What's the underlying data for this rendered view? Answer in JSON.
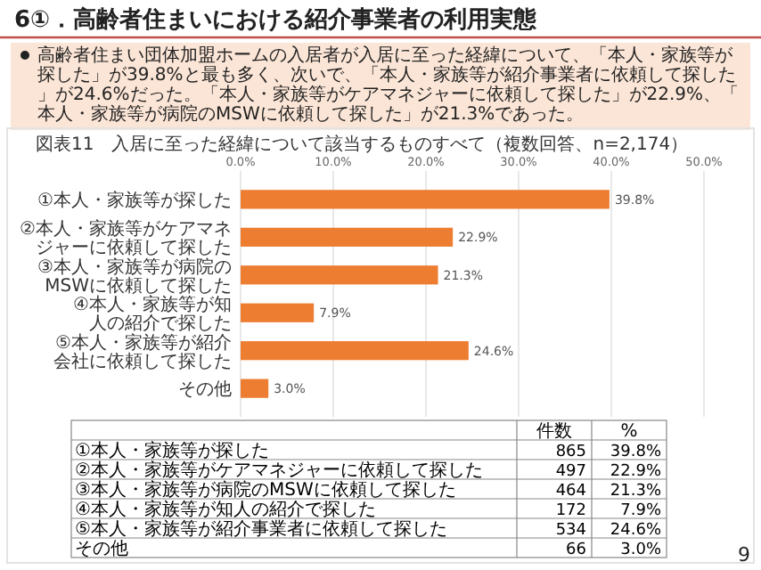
{
  "chart_data": [
    {
      "type": "bar",
      "orientation": "horizontal",
      "title": "6①．高齢者住まいにおける紹介事業者の利用実態",
      "subtitle": "図表11　入居に至った経緯について該当するものすべて（複数回答、n=2,174）",
      "annotations": [
        "高齢者住まい団体加盟ホームの入居者が入居に至った経緯について、「本人・家族等が探した」が39.8%と最も多く、次いで、「本人・家族等が紹介事業者に依頼して探した」が24.6%だった。「本人・家族等がケアマネジャーに依頼して探した」が22.9%、「本人・家族等が病院のMSWに依頼して探した」が21.3%であった。",
        "9"
      ],
      "categories": [
        "①本人・家族等が探した",
        "②本人・家族等がケアマネジャーに依頼して探した",
        "③本人・家族等が病院のMSWに依頼して探した",
        "④本人・家族等が知人の紹介で探した",
        "⑤本人・家族等が紹介会社に依頼して探した",
        "その他"
      ],
      "values": [
        39.8,
        22.9,
        21.3,
        7.9,
        24.6,
        3.0
      ],
      "value_labels": [
        "39.8%",
        "22.9%",
        "21.3%",
        "7.9%",
        "24.6%",
        "3.0%"
      ],
      "color": "#ed7d31",
      "xlim": [
        0,
        50
      ],
      "xticks": [
        {
          "value": 0,
          "label": "0.0%"
        },
        {
          "value": 10,
          "label": "10.0%"
        },
        {
          "value": 20,
          "label": "20.0%"
        },
        {
          "value": 30,
          "label": "30.0%"
        },
        {
          "value": 40,
          "label": "40.0%"
        },
        {
          "value": 50,
          "label": "50.0%"
        }
      ],
      "grid": "x"
    },
    {
      "type": "other",
      "data_labels": true,
      "categories": [
        "①本人・家族等が探した",
        "②本人・家族等がケアマネジャーに依頼して探した",
        "③本人・家族等が病院のMSWに依頼して探した",
        "④本人・家族等が知人の紹介で探した",
        "⑤本人・家族等が紹介事業者に依頼して探した",
        "その他"
      ],
      "series": [
        {
          "name": "件数",
          "values": [
            865,
            497,
            464,
            172,
            534,
            66
          ]
        },
        {
          "name": "%",
          "values": [
            39.8,
            22.9,
            21.3,
            7.9,
            24.6,
            3.0
          ],
          "value_labels": [
            "39.8%",
            "22.9%",
            "21.3%",
            "7.9%",
            "24.6%",
            "3.0%"
          ]
        }
      ]
    }
  ]
}
